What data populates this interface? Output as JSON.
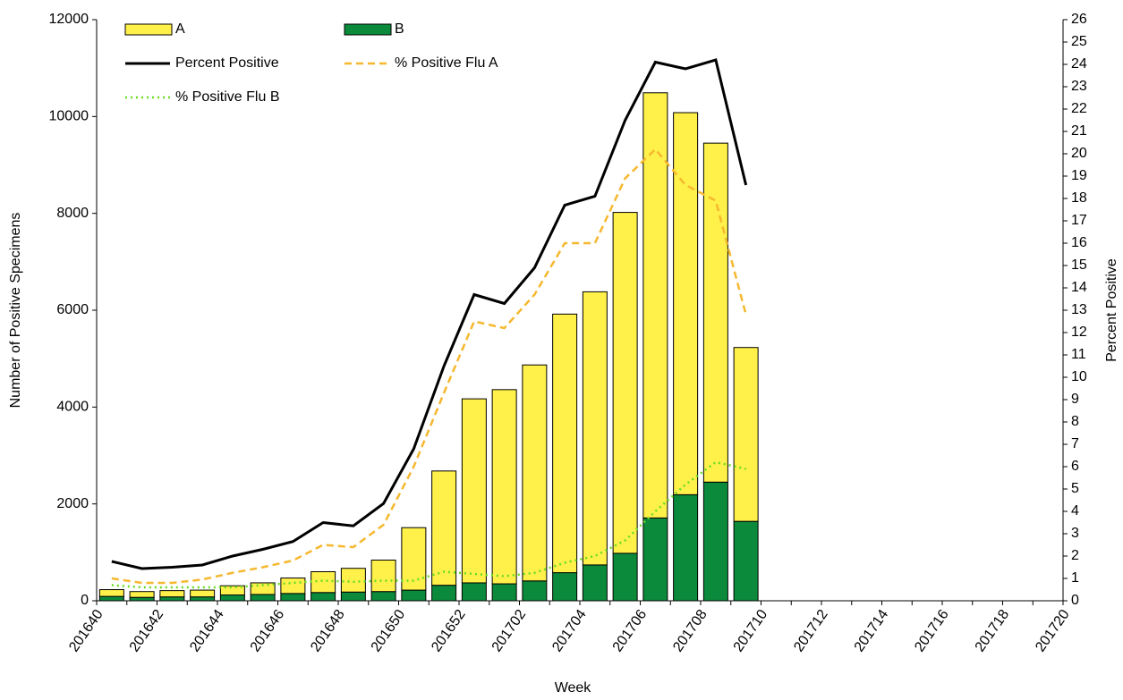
{
  "chart_data": {
    "type": "bar",
    "x_label": "Week",
    "y_label": "Number of Positive Specimens",
    "y2_label": "Percent Positive",
    "categories": [
      "201640",
      null,
      "201642",
      null,
      "201644",
      null,
      "201646",
      null,
      "201648",
      null,
      "201650",
      null,
      "201652",
      null,
      "201702",
      null,
      "201704",
      null,
      "201706",
      null,
      "201708",
      null,
      "201710",
      null,
      "201712",
      null,
      "201714",
      null,
      "201716",
      null,
      "201718",
      null,
      "201720"
    ],
    "stacked": true,
    "grid": false,
    "legend": "top-left",
    "ylim": [
      0,
      12000
    ],
    "yticks": [
      0,
      2000,
      4000,
      6000,
      8000,
      10000,
      12000
    ],
    "y2lim": [
      0,
      26
    ],
    "y2ticks": [
      0,
      1,
      2,
      3,
      4,
      5,
      6,
      7,
      8,
      9,
      10,
      11,
      12,
      13,
      14,
      15,
      16,
      17,
      18,
      19,
      20,
      21,
      22,
      23,
      24,
      25,
      26
    ],
    "series": [
      {
        "name": "A",
        "type": "bar",
        "color": "#fff04a",
        "values": [
          140,
          120,
          130,
          140,
          190,
          240,
          320,
          430,
          490,
          650,
          1290,
          2360,
          3800,
          4010,
          4460,
          5340,
          5640,
          7040,
          8780,
          7890,
          7000,
          3590,
          null,
          null,
          null,
          null,
          null,
          null,
          null,
          null,
          null,
          null,
          null
        ]
      },
      {
        "name": "B",
        "type": "bar",
        "color": "#0b8a3b",
        "values": [
          90,
          70,
          80,
          80,
          120,
          130,
          150,
          170,
          180,
          190,
          220,
          320,
          370,
          350,
          410,
          580,
          740,
          980,
          1710,
          2190,
          2450,
          1640,
          null,
          null,
          null,
          null,
          null,
          null,
          null,
          null,
          null,
          null,
          null
        ]
      },
      {
        "name": "Percent Positive",
        "type": "line",
        "axis": "y2",
        "color": "#000000",
        "style": "solid",
        "values": [
          1.76,
          1.44,
          1.5,
          1.6,
          2.0,
          2.3,
          2.65,
          3.5,
          3.35,
          4.35,
          6.8,
          10.5,
          13.7,
          13.3,
          14.9,
          17.7,
          18.1,
          21.5,
          24.1,
          23.8,
          24.2,
          18.6,
          null,
          null,
          null,
          null,
          null,
          null,
          null,
          null,
          null,
          null,
          null
        ]
      },
      {
        "name": "% Positive Flu A",
        "type": "line",
        "axis": "y2",
        "color": "#f5b82e",
        "style": "dashed",
        "values": [
          1.0,
          0.8,
          0.8,
          0.95,
          1.25,
          1.5,
          1.8,
          2.5,
          2.4,
          3.4,
          6.0,
          9.3,
          12.5,
          12.2,
          13.7,
          16.0,
          16.0,
          18.9,
          20.2,
          18.6,
          17.9,
          12.8,
          null,
          null,
          null,
          null,
          null,
          null,
          null,
          null,
          null,
          null,
          null
        ]
      },
      {
        "name": "% Positive Flu B",
        "type": "line",
        "axis": "y2",
        "color": "#66dd22",
        "style": "dotted",
        "values": [
          0.7,
          0.6,
          0.6,
          0.6,
          0.6,
          0.7,
          0.8,
          0.9,
          0.85,
          0.9,
          0.9,
          1.3,
          1.2,
          1.1,
          1.25,
          1.7,
          2.0,
          2.7,
          4.0,
          5.2,
          6.2,
          5.9,
          null,
          null,
          null,
          null,
          null,
          null,
          null,
          null,
          null,
          null,
          null
        ]
      }
    ]
  }
}
